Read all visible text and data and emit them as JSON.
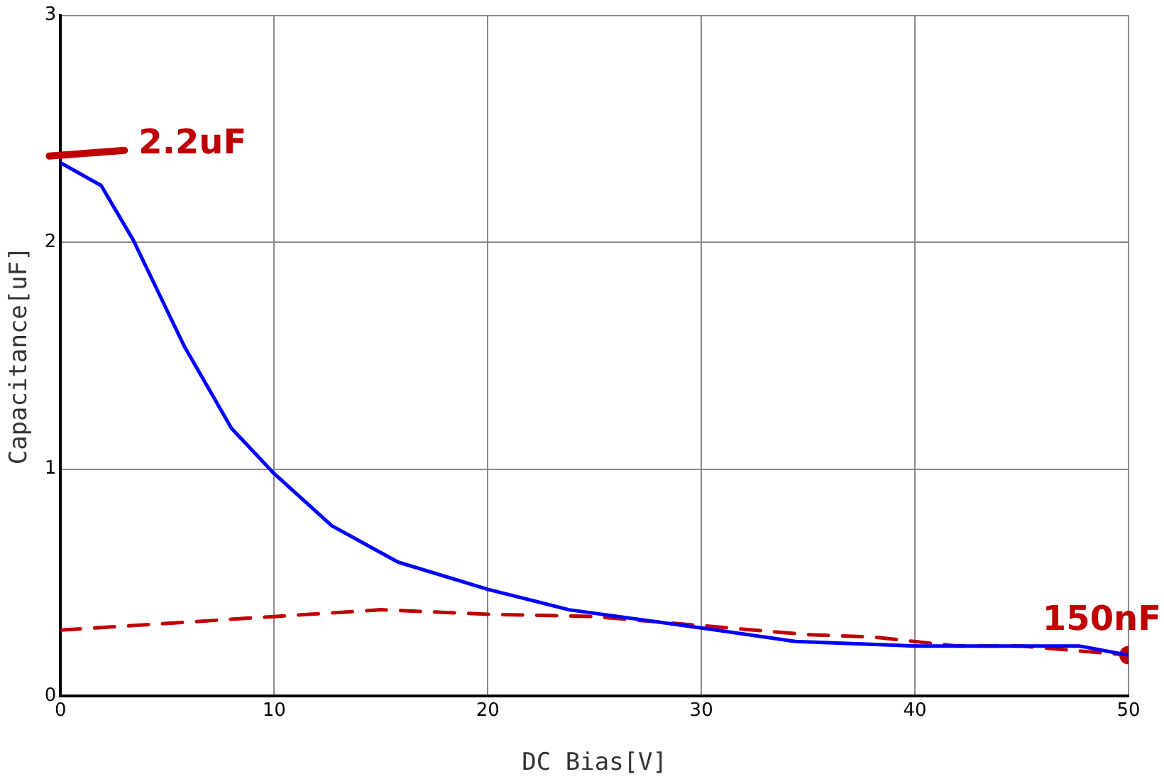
{
  "chart_data": {
    "type": "line",
    "xlabel": "DC Bias[V]",
    "ylabel": "Capacitance[uF]",
    "xlim": [
      0,
      50
    ],
    "xticks": [
      0,
      10,
      20,
      30,
      40,
      50
    ],
    "ylim": [
      0,
      3
    ],
    "yticks": [
      0,
      1,
      2,
      3
    ],
    "grid": true,
    "legend": false,
    "marker": "none",
    "series": [
      {
        "color": "#0000ff",
        "x": [
          0,
          1.9,
          3.4,
          5.8,
          8,
          10,
          12.7,
          15.8,
          20,
          23.8,
          30,
          34.4,
          40,
          47.7,
          50
        ],
        "values": [
          2.35,
          2.25,
          2.01,
          1.54,
          1.18,
          0.98,
          0.75,
          0.59,
          0.47,
          0.38,
          0.3,
          0.24,
          0.22,
          0.22,
          0.18
        ]
      },
      {
        "color": "#c00000",
        "line_style": "dashed",
        "x": [
          0,
          10,
          15,
          20,
          25,
          30,
          35,
          38,
          42,
          45,
          50
        ],
        "values": [
          0.29,
          0.35,
          0.38,
          0.36,
          0.35,
          0.31,
          0.27,
          0.26,
          0.22,
          0.22,
          0.18
        ]
      },
      {
        "type": "scatter",
        "marker": "circle",
        "color": "#c00000",
        "x": [
          50
        ],
        "values": [
          0.18
        ]
      }
    ],
    "annotations": [
      {
        "text": "2.2uF",
        "x": 0,
        "y": 2.38
      },
      {
        "text": "150nF",
        "x": 50,
        "y": 0.18
      }
    ]
  }
}
